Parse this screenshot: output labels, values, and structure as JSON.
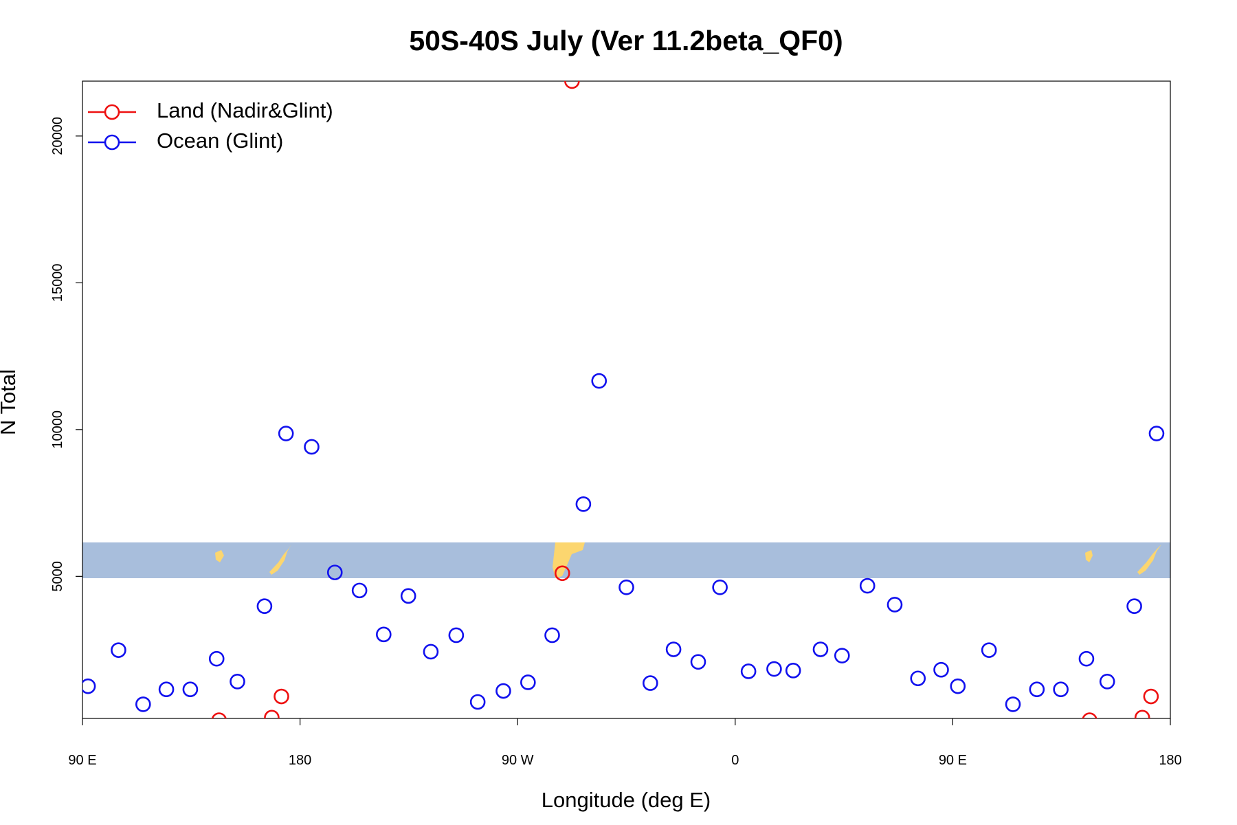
{
  "chart_data": {
    "type": "scatter",
    "title": "50S-40S July (Ver 11.2beta_QF0)",
    "x_label": "Longitude (deg E)",
    "y_label": "N Total",
    "xlim": [
      90,
      540
    ],
    "ylim": [
      160,
      21870
    ],
    "xticks": [
      {
        "value": 90,
        "label": "90 E"
      },
      180,
      {
        "value": 270,
        "label": "90 W"
      },
      {
        "value": 360,
        "label": "0"
      },
      {
        "value": 450,
        "label": "90 E"
      },
      {
        "value": 540,
        "label": "180"
      }
    ],
    "yticks": [
      5000,
      10000,
      15000,
      20000
    ],
    "legend": "top-left",
    "series": [
      {
        "name": "Land (Nadir&Glint)",
        "color": "#ee1111",
        "x": [
          146.5,
          168.3,
          172.3,
          292.5,
          288.5,
          506.6,
          528.4,
          532.0
        ],
        "values": [
          100,
          187,
          909,
          21872,
          5107,
          100,
          187,
          909
        ]
      },
      {
        "name": "Ocean (Glint)",
        "color": "#1111ee",
        "x": [
          92.3,
          104.9,
          115.1,
          124.7,
          134.6,
          145.5,
          154.1,
          165.3,
          174.2,
          184.8,
          194.4,
          204.6,
          214.6,
          224.8,
          234.1,
          244.6,
          253.5,
          264.1,
          274.3,
          284.3,
          297.2,
          303.7,
          315.0,
          324.9,
          334.5,
          344.7,
          353.7,
          365.5,
          376.1,
          384.0,
          395.3,
          404.2,
          414.7,
          426.0,
          435.6,
          445.2,
          452.1,
          465.0,
          474.9,
          484.8,
          494.7,
          505.3,
          513.9,
          525.1,
          534.3
        ],
        "values": [
          1257,
          2487,
          642,
          1150,
          1150,
          2193,
          1417,
          3984,
          9866,
          9412,
          5134,
          4519,
          3021,
          4332,
          2433,
          2995,
          722,
          1096,
          1390,
          2995,
          7460,
          11658,
          4626,
          1364,
          2513,
          2086,
          4626,
          1765,
          1845,
          1791,
          2513,
          2299,
          4679,
          4037,
          1524,
          1818,
          1257,
          2487,
          642,
          1150,
          1150,
          2193,
          1417,
          3984,
          9866
        ]
      }
    ]
  }
}
